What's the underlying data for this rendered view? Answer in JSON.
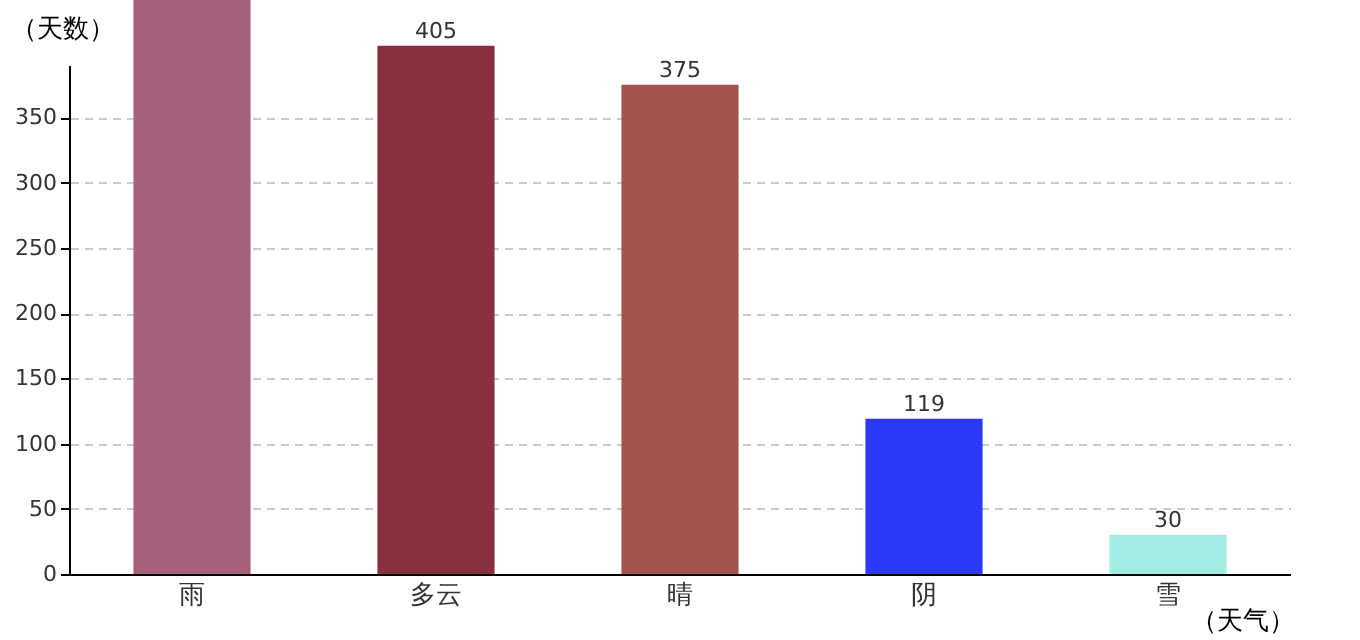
{
  "chart_data": {
    "type": "bar",
    "xlabel": "（天气）",
    "ylabel": "（天数）",
    "categories": [
      "雨",
      "多云",
      "晴",
      "阴",
      "雪"
    ],
    "values": [
      440,
      405,
      375,
      119,
      30
    ],
    "colors": [
      "#a5607c",
      "#88303b",
      "#a3534a",
      "#2a3af8",
      "#a3ece4"
    ],
    "value_labels": [
      null,
      "405",
      "375",
      "119",
      "30"
    ],
    "ylim": [
      0,
      440
    ],
    "yticks": [
      0,
      50,
      100,
      150,
      200,
      250,
      300,
      350
    ],
    "grid": "y"
  }
}
